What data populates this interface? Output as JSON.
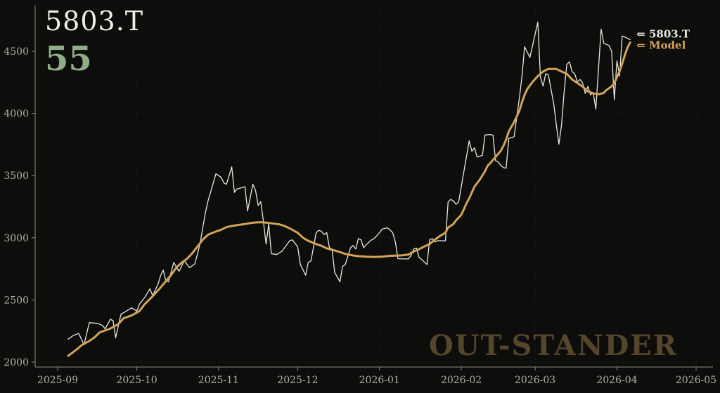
{
  "header": {
    "symbol": "5803.T",
    "score": "55"
  },
  "watermark": "OUT-STANDER",
  "colors": {
    "background": "#0d0d0b",
    "price_line": "#e9e7e3",
    "model_line": "#d2a458",
    "score_green": "#90ae85",
    "watermark": "#55452a",
    "title_text": "#f1eee8",
    "tick_text": "#b3afa9",
    "axis": "#8a8a84",
    "grid": "rgba(255,255,255,0.09)"
  },
  "chart_data": {
    "type": "line",
    "title": "5803.T",
    "score_annotation": "55",
    "grid": "dotted",
    "legend_position": "line-end",
    "x_axis": {
      "start": "2025-09-01",
      "end": "2026-05-01",
      "ticks": [
        "2025-09",
        "2025-10",
        "2025-11",
        "2025-12",
        "2026-01",
        "2026-02",
        "2026-03",
        "2026-04",
        "2026-05"
      ]
    },
    "y_axis": {
      "ticks": [
        2000,
        2500,
        3000,
        3500,
        4000,
        4500
      ]
    },
    "series": [
      {
        "name": "5803.T",
        "end_label": "⇐ 5803.T",
        "color_key": "price_line",
        "points": [
          [
            "2025-09-05",
            2185
          ],
          [
            "2025-09-07",
            2215
          ],
          [
            "2025-09-09",
            2230
          ],
          [
            "2025-09-11",
            2140
          ],
          [
            "2025-09-13",
            2317
          ],
          [
            "2025-09-16",
            2312
          ],
          [
            "2025-09-18",
            2295
          ],
          [
            "2025-09-19",
            2268
          ],
          [
            "2025-09-21",
            2345
          ],
          [
            "2025-09-22",
            2333
          ],
          [
            "2025-09-23",
            2195
          ],
          [
            "2025-09-25",
            2385
          ],
          [
            "2025-09-27",
            2410
          ],
          [
            "2025-09-29",
            2436
          ],
          [
            "2025-10-01",
            2410
          ],
          [
            "2025-10-02",
            2466
          ],
          [
            "2025-10-04",
            2520
          ],
          [
            "2025-10-06",
            2590
          ],
          [
            "2025-10-07",
            2535
          ],
          [
            "2025-10-09",
            2625
          ],
          [
            "2025-10-10",
            2694
          ],
          [
            "2025-10-11",
            2740
          ],
          [
            "2025-10-12",
            2655
          ],
          [
            "2025-10-13",
            2645
          ],
          [
            "2025-10-15",
            2800
          ],
          [
            "2025-10-17",
            2730
          ],
          [
            "2025-10-19",
            2815
          ],
          [
            "2025-10-21",
            2760
          ],
          [
            "2025-10-23",
            2790
          ],
          [
            "2025-10-24",
            2872
          ],
          [
            "2025-10-25",
            2955
          ],
          [
            "2025-10-26",
            3082
          ],
          [
            "2025-10-27",
            3200
          ],
          [
            "2025-10-28",
            3297
          ],
          [
            "2025-10-31",
            3514
          ],
          [
            "2025-11-02",
            3486
          ],
          [
            "2025-11-03",
            3440
          ],
          [
            "2025-11-04",
            3430
          ],
          [
            "2025-11-06",
            3570
          ],
          [
            "2025-11-07",
            3365
          ],
          [
            "2025-11-08",
            3393
          ],
          [
            "2025-11-11",
            3410
          ],
          [
            "2025-11-12",
            3215
          ],
          [
            "2025-11-14",
            3430
          ],
          [
            "2025-11-15",
            3382
          ],
          [
            "2025-11-16",
            3260
          ],
          [
            "2025-11-17",
            3290
          ],
          [
            "2025-11-18",
            3130
          ],
          [
            "2025-11-19",
            2950
          ],
          [
            "2025-11-20",
            3110
          ],
          [
            "2025-11-21",
            2872
          ],
          [
            "2025-11-23",
            2865
          ],
          [
            "2025-11-25",
            2891
          ],
          [
            "2025-11-28",
            2977
          ],
          [
            "2025-11-29",
            2983
          ],
          [
            "2025-11-30",
            2955
          ],
          [
            "2025-12-01",
            2926
          ],
          [
            "2025-12-02",
            2785
          ],
          [
            "2025-12-04",
            2699
          ],
          [
            "2025-12-05",
            2803
          ],
          [
            "2025-12-06",
            2813
          ],
          [
            "2025-12-08",
            3041
          ],
          [
            "2025-12-09",
            3060
          ],
          [
            "2025-12-10",
            3052
          ],
          [
            "2025-12-11",
            3025
          ],
          [
            "2025-12-12",
            3041
          ],
          [
            "2025-12-13",
            2920
          ],
          [
            "2025-12-14",
            2909
          ],
          [
            "2025-12-15",
            2721
          ],
          [
            "2025-12-17",
            2646
          ],
          [
            "2025-12-18",
            2769
          ],
          [
            "2025-12-19",
            2785
          ],
          [
            "2025-12-21",
            2920
          ],
          [
            "2025-12-22",
            2938
          ],
          [
            "2025-12-23",
            2909
          ],
          [
            "2025-12-24",
            2994
          ],
          [
            "2025-12-25",
            2983
          ],
          [
            "2025-12-26",
            2920
          ],
          [
            "2025-12-27",
            2945
          ],
          [
            "2025-12-29",
            2983
          ],
          [
            "2025-12-30",
            2994
          ],
          [
            "2026-01-01",
            3041
          ],
          [
            "2026-01-02",
            3070
          ],
          [
            "2026-01-04",
            3080
          ],
          [
            "2026-01-05",
            3062
          ],
          [
            "2026-01-06",
            3041
          ],
          [
            "2026-01-07",
            2966
          ],
          [
            "2026-01-08",
            2832
          ],
          [
            "2026-01-10",
            2830
          ],
          [
            "2026-01-12",
            2830
          ],
          [
            "2026-01-13",
            2860
          ],
          [
            "2026-01-14",
            2910
          ],
          [
            "2026-01-15",
            2917
          ],
          [
            "2026-01-16",
            2842
          ],
          [
            "2026-01-17",
            2825
          ],
          [
            "2026-01-19",
            2785
          ],
          [
            "2026-01-20",
            2983
          ],
          [
            "2026-01-21",
            2994
          ],
          [
            "2026-01-22",
            2966
          ],
          [
            "2026-01-23",
            2977
          ],
          [
            "2026-01-26",
            2975
          ],
          [
            "2026-01-27",
            3288
          ],
          [
            "2026-01-28",
            3308
          ],
          [
            "2026-01-29",
            3297
          ],
          [
            "2026-01-30",
            3269
          ],
          [
            "2026-01-31",
            3288
          ],
          [
            "2026-02-04",
            3780
          ],
          [
            "2026-02-05",
            3695
          ],
          [
            "2026-02-06",
            3723
          ],
          [
            "2026-02-07",
            3649
          ],
          [
            "2026-02-09",
            3663
          ],
          [
            "2026-02-10",
            3827
          ],
          [
            "2026-02-12",
            3830
          ],
          [
            "2026-02-13",
            3825
          ],
          [
            "2026-02-14",
            3620
          ],
          [
            "2026-02-15",
            3610
          ],
          [
            "2026-02-16",
            3580
          ],
          [
            "2026-02-17",
            3564
          ],
          [
            "2026-02-18",
            3560
          ],
          [
            "2026-02-19",
            3799
          ],
          [
            "2026-02-21",
            3812
          ],
          [
            "2026-02-23",
            4120
          ],
          [
            "2026-02-24",
            4300
          ],
          [
            "2026-02-25",
            4536
          ],
          [
            "2026-02-27",
            4450
          ],
          [
            "2026-03-02",
            4734
          ],
          [
            "2026-03-03",
            4290
          ],
          [
            "2026-03-04",
            4220
          ],
          [
            "2026-03-05",
            4319
          ],
          [
            "2026-03-06",
            4309
          ],
          [
            "2026-03-08",
            4082
          ],
          [
            "2026-03-09",
            3912
          ],
          [
            "2026-03-10",
            3752
          ],
          [
            "2026-03-11",
            3905
          ],
          [
            "2026-03-12",
            4177
          ],
          [
            "2026-03-13",
            4394
          ],
          [
            "2026-03-14",
            4415
          ],
          [
            "2026-03-15",
            4337
          ],
          [
            "2026-03-16",
            4319
          ],
          [
            "2026-03-17",
            4253
          ],
          [
            "2026-03-18",
            4273
          ],
          [
            "2026-03-19",
            4245
          ],
          [
            "2026-03-20",
            4160
          ],
          [
            "2026-03-21",
            4217
          ],
          [
            "2026-03-22",
            4149
          ],
          [
            "2026-03-23",
            4168
          ],
          [
            "2026-03-24",
            4035
          ],
          [
            "2026-03-26",
            4678
          ],
          [
            "2026-03-27",
            4564
          ],
          [
            "2026-03-29",
            4546
          ],
          [
            "2026-03-30",
            4500
          ],
          [
            "2026-03-31",
            4110
          ],
          [
            "2026-04-01",
            4422
          ],
          [
            "2026-04-02",
            4302
          ],
          [
            "2026-04-03",
            4622
          ],
          [
            "2026-04-04",
            4614
          ],
          [
            "2026-04-06",
            4593
          ]
        ]
      },
      {
        "name": "Model",
        "end_label": "⇐ Model",
        "color_key": "model_line",
        "points": [
          [
            "2025-09-05",
            2051
          ],
          [
            "2025-09-08",
            2098
          ],
          [
            "2025-09-10",
            2135
          ],
          [
            "2025-09-13",
            2170
          ],
          [
            "2025-09-15",
            2200
          ],
          [
            "2025-09-17",
            2240
          ],
          [
            "2025-09-21",
            2270
          ],
          [
            "2025-09-24",
            2306
          ],
          [
            "2025-09-26",
            2353
          ],
          [
            "2025-09-29",
            2375
          ],
          [
            "2025-10-02",
            2410
          ],
          [
            "2025-10-04",
            2466
          ],
          [
            "2025-10-07",
            2530
          ],
          [
            "2025-10-10",
            2600
          ],
          [
            "2025-10-12",
            2650
          ],
          [
            "2025-10-14",
            2700
          ],
          [
            "2025-10-16",
            2760
          ],
          [
            "2025-10-18",
            2800
          ],
          [
            "2025-10-20",
            2830
          ],
          [
            "2025-10-22",
            2875
          ],
          [
            "2025-10-24",
            2930
          ],
          [
            "2025-10-26",
            2985
          ],
          [
            "2025-10-28",
            3025
          ],
          [
            "2025-10-31",
            3050
          ],
          [
            "2025-11-02",
            3065
          ],
          [
            "2025-11-04",
            3085
          ],
          [
            "2025-11-06",
            3095
          ],
          [
            "2025-11-09",
            3105
          ],
          [
            "2025-11-11",
            3110
          ],
          [
            "2025-11-13",
            3118
          ],
          [
            "2025-11-15",
            3123
          ],
          [
            "2025-11-17",
            3125
          ],
          [
            "2025-11-19",
            3122
          ],
          [
            "2025-11-21",
            3116
          ],
          [
            "2025-11-24",
            3108
          ],
          [
            "2025-11-26",
            3095
          ],
          [
            "2025-11-28",
            3075
          ],
          [
            "2025-12-01",
            3040
          ],
          [
            "2025-12-03",
            3000
          ],
          [
            "2025-12-05",
            2975
          ],
          [
            "2025-12-08",
            2950
          ],
          [
            "2025-12-10",
            2935
          ],
          [
            "2025-12-12",
            2915
          ],
          [
            "2025-12-15",
            2898
          ],
          [
            "2025-12-17",
            2885
          ],
          [
            "2025-12-19",
            2870
          ],
          [
            "2025-12-22",
            2858
          ],
          [
            "2025-12-24",
            2852
          ],
          [
            "2025-12-27",
            2848
          ],
          [
            "2025-12-30",
            2846
          ],
          [
            "2026-01-02",
            2848
          ],
          [
            "2026-01-05",
            2855
          ],
          [
            "2026-01-07",
            2856
          ],
          [
            "2026-01-09",
            2858
          ],
          [
            "2026-01-12",
            2865
          ],
          [
            "2026-01-14",
            2890
          ],
          [
            "2026-01-16",
            2908
          ],
          [
            "2026-01-18",
            2930
          ],
          [
            "2026-01-20",
            2950
          ],
          [
            "2026-01-22",
            2985
          ],
          [
            "2026-01-24",
            3015
          ],
          [
            "2026-01-26",
            3040
          ],
          [
            "2026-01-27",
            3082
          ],
          [
            "2026-01-29",
            3110
          ],
          [
            "2026-01-30",
            3140
          ],
          [
            "2026-02-01",
            3185
          ],
          [
            "2026-02-02",
            3230
          ],
          [
            "2026-02-03",
            3280
          ],
          [
            "2026-02-04",
            3316
          ],
          [
            "2026-02-05",
            3365
          ],
          [
            "2026-02-06",
            3411
          ],
          [
            "2026-02-08",
            3467
          ],
          [
            "2026-02-10",
            3535
          ],
          [
            "2026-02-11",
            3580
          ],
          [
            "2026-02-12",
            3600
          ],
          [
            "2026-02-14",
            3650
          ],
          [
            "2026-02-16",
            3700
          ],
          [
            "2026-02-17",
            3740
          ],
          [
            "2026-02-18",
            3790
          ],
          [
            "2026-02-19",
            3855
          ],
          [
            "2026-02-21",
            3930
          ],
          [
            "2026-02-23",
            4020
          ],
          [
            "2026-02-24",
            4090
          ],
          [
            "2026-02-25",
            4150
          ],
          [
            "2026-02-26",
            4196
          ],
          [
            "2026-02-28",
            4253
          ],
          [
            "2026-03-02",
            4300
          ],
          [
            "2026-03-04",
            4337
          ],
          [
            "2026-03-06",
            4358
          ],
          [
            "2026-03-09",
            4358
          ],
          [
            "2026-03-11",
            4337
          ],
          [
            "2026-03-13",
            4319
          ],
          [
            "2026-03-15",
            4273
          ],
          [
            "2026-03-17",
            4245
          ],
          [
            "2026-03-19",
            4215
          ],
          [
            "2026-03-21",
            4177
          ],
          [
            "2026-03-23",
            4160
          ],
          [
            "2026-03-25",
            4154
          ],
          [
            "2026-03-27",
            4165
          ],
          [
            "2026-03-28",
            4188
          ],
          [
            "2026-03-30",
            4217
          ],
          [
            "2026-03-31",
            4245
          ],
          [
            "2026-04-01",
            4290
          ],
          [
            "2026-04-02",
            4340
          ],
          [
            "2026-04-03",
            4400
          ],
          [
            "2026-04-04",
            4470
          ],
          [
            "2026-04-05",
            4528
          ],
          [
            "2026-04-06",
            4570
          ]
        ]
      }
    ]
  }
}
